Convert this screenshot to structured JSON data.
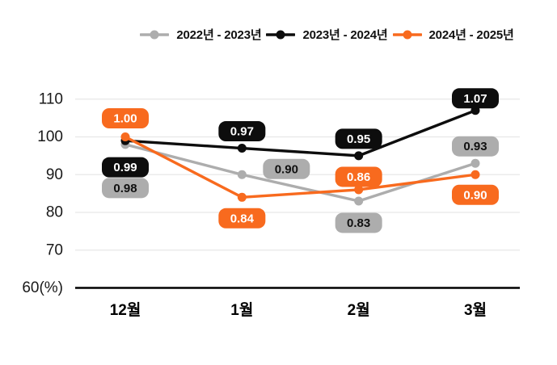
{
  "chart_data": {
    "type": "line",
    "title": "",
    "categories": [
      "12월",
      "1월",
      "2월",
      "3월"
    ],
    "y_axis": {
      "tick_values": [
        110,
        100,
        90,
        80,
        70,
        60
      ],
      "tick_labels": [
        "110",
        "100",
        "90",
        "80",
        "70",
        "60(%)"
      ],
      "range_pct": [
        60,
        110
      ],
      "unit": "%"
    },
    "grid": true,
    "legend_position": "top",
    "colors": {
      "gray": "#adadad",
      "black": "#0d0d0d",
      "orange": "#f86a1e",
      "gridline": "#e7e7e7",
      "axis": "#000000"
    },
    "series": [
      {
        "name": "2022년 - 2023년",
        "color": "#adadad",
        "label_text_color": "#111111",
        "values": [
          0.98,
          0.9,
          0.83,
          0.93
        ],
        "values_pct": [
          98,
          90,
          83,
          93
        ],
        "point_labels": [
          "0.98",
          "0.90",
          "0.83",
          "0.93"
        ],
        "label_offsets": [
          [
            0,
            54
          ],
          [
            55,
            -7
          ],
          [
            0,
            27
          ],
          [
            0,
            -21
          ]
        ]
      },
      {
        "name": "2023년 - 2024년",
        "color": "#0d0d0d",
        "label_text_color": "#ffffff",
        "values": [
          0.99,
          0.97,
          0.95,
          1.07
        ],
        "values_pct": [
          99,
          97,
          95,
          107
        ],
        "point_labels": [
          "0.99",
          "0.97",
          "0.95",
          "1.07"
        ],
        "label_offsets": [
          [
            0,
            33
          ],
          [
            0,
            -21
          ],
          [
            0,
            -21
          ],
          [
            0,
            -15
          ]
        ]
      },
      {
        "name": "2024년 - 2025년",
        "color": "#f86a1e",
        "label_text_color": "#ffffff",
        "values": [
          1.0,
          0.84,
          0.86,
          0.9
        ],
        "values_pct": [
          100,
          84,
          86,
          90
        ],
        "point_labels": [
          "1.00",
          "0.84",
          "0.86",
          "0.90"
        ],
        "label_offsets": [
          [
            0,
            -23
          ],
          [
            0,
            26
          ],
          [
            0,
            -16
          ],
          [
            0,
            25
          ]
        ]
      }
    ]
  }
}
